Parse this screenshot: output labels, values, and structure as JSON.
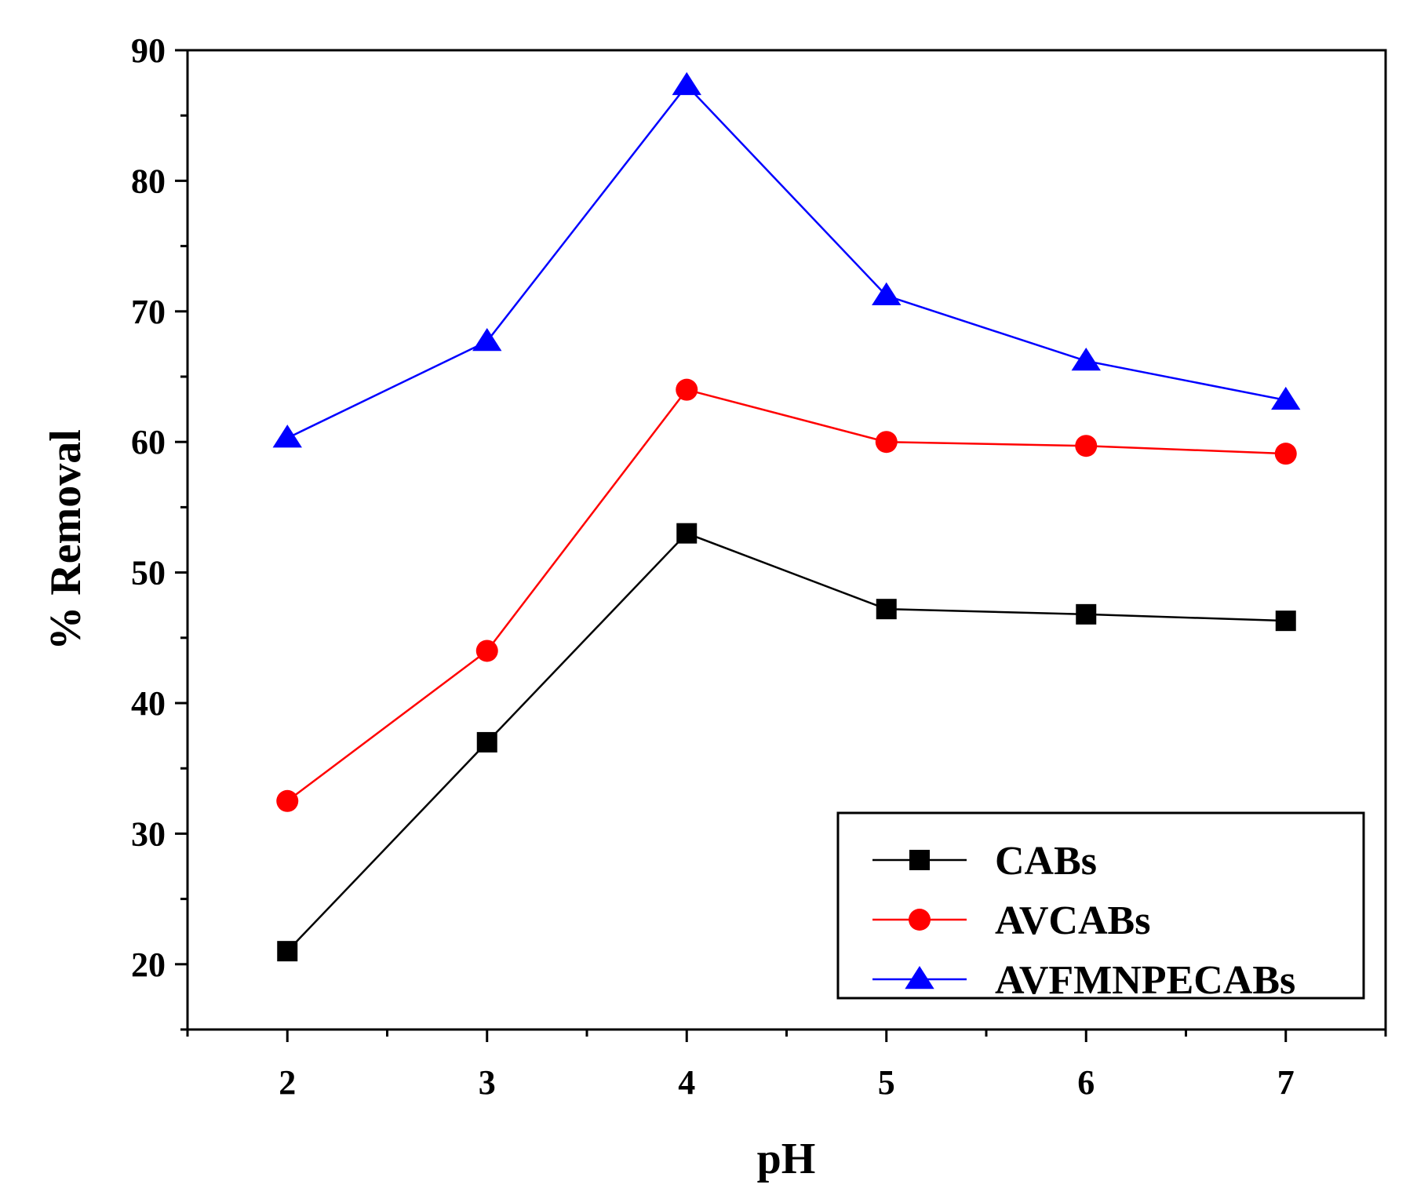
{
  "chart_data": {
    "type": "line",
    "title": "",
    "xlabel": "pH",
    "ylabel": "% Removal",
    "xlim": [
      1.5,
      7.5
    ],
    "ylim": [
      15,
      90
    ],
    "xticks": [
      2,
      3,
      4,
      5,
      6,
      7
    ],
    "yticks": [
      20,
      30,
      40,
      50,
      60,
      70,
      80,
      90
    ],
    "grid": false,
    "legend_position": "bottom-right",
    "x": [
      2,
      3,
      4,
      5,
      6,
      7
    ],
    "series": [
      {
        "name": "CABs",
        "marker": "square",
        "color": "#000000",
        "values": [
          21.0,
          37.0,
          53.0,
          47.2,
          46.8,
          46.3
        ]
      },
      {
        "name": "AVCABs",
        "marker": "circle",
        "color": "#ff0000",
        "values": [
          32.5,
          44.0,
          64.0,
          60.0,
          59.7,
          59.1
        ]
      },
      {
        "name": "AVFMNPECABs",
        "marker": "triangle",
        "color": "#0000ff",
        "values": [
          60.3,
          67.7,
          87.3,
          71.2,
          66.2,
          63.2
        ]
      }
    ]
  }
}
